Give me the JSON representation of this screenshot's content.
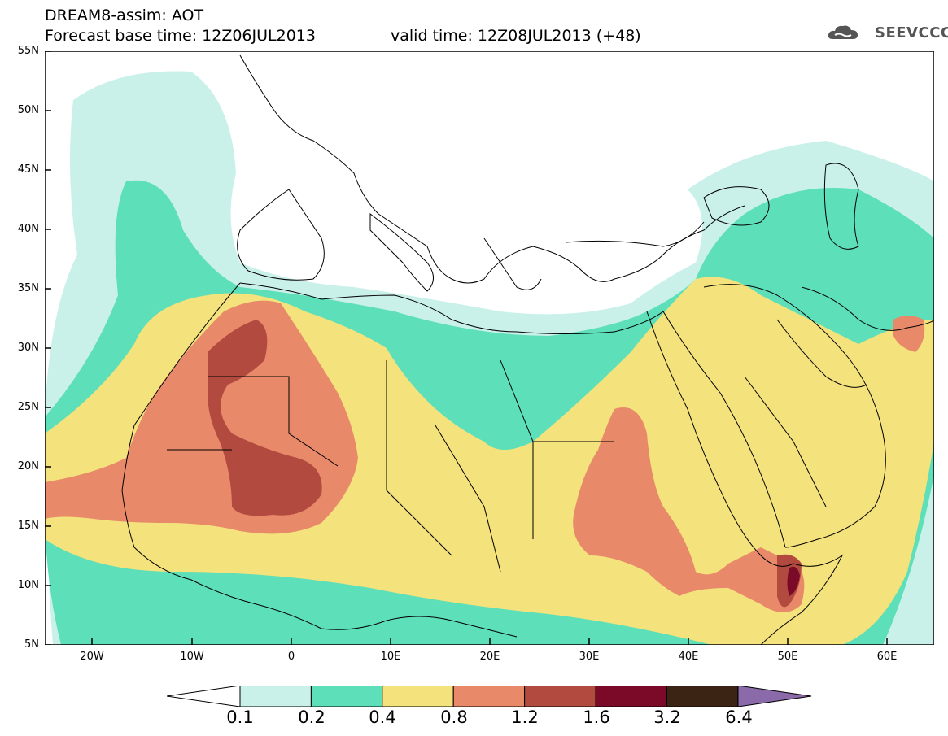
{
  "header": {
    "title_line1": "DREAM8-assim: AOT",
    "base_time": "Forecast base time: 12Z06JUL2013",
    "valid_time": "valid time: 12Z08JUL2013 (+48)",
    "logo_text": "SEEVCCC"
  },
  "axes": {
    "lat_labels": [
      "55N",
      "50N",
      "45N",
      "40N",
      "35N",
      "30N",
      "25N",
      "20N",
      "15N",
      "10N",
      "5N"
    ],
    "lon_labels": [
      "20W",
      "10W",
      "0",
      "10E",
      "20E",
      "30E",
      "40E",
      "50E",
      "60E"
    ]
  },
  "legend": {
    "labels": [
      "0.1",
      "0.2",
      "0.4",
      "0.8",
      "1.2",
      "1.6",
      "3.2",
      "6.4"
    ],
    "colors": [
      "#c9f1ea",
      "#5ddfb9",
      "#f4e27c",
      "#e8896a",
      "#b24a3f",
      "#7a0a28",
      "#3b2413",
      "#8a6aa8"
    ]
  },
  "colors": {
    "land_outline": "#000000",
    "ocean": "#ffffff"
  }
}
